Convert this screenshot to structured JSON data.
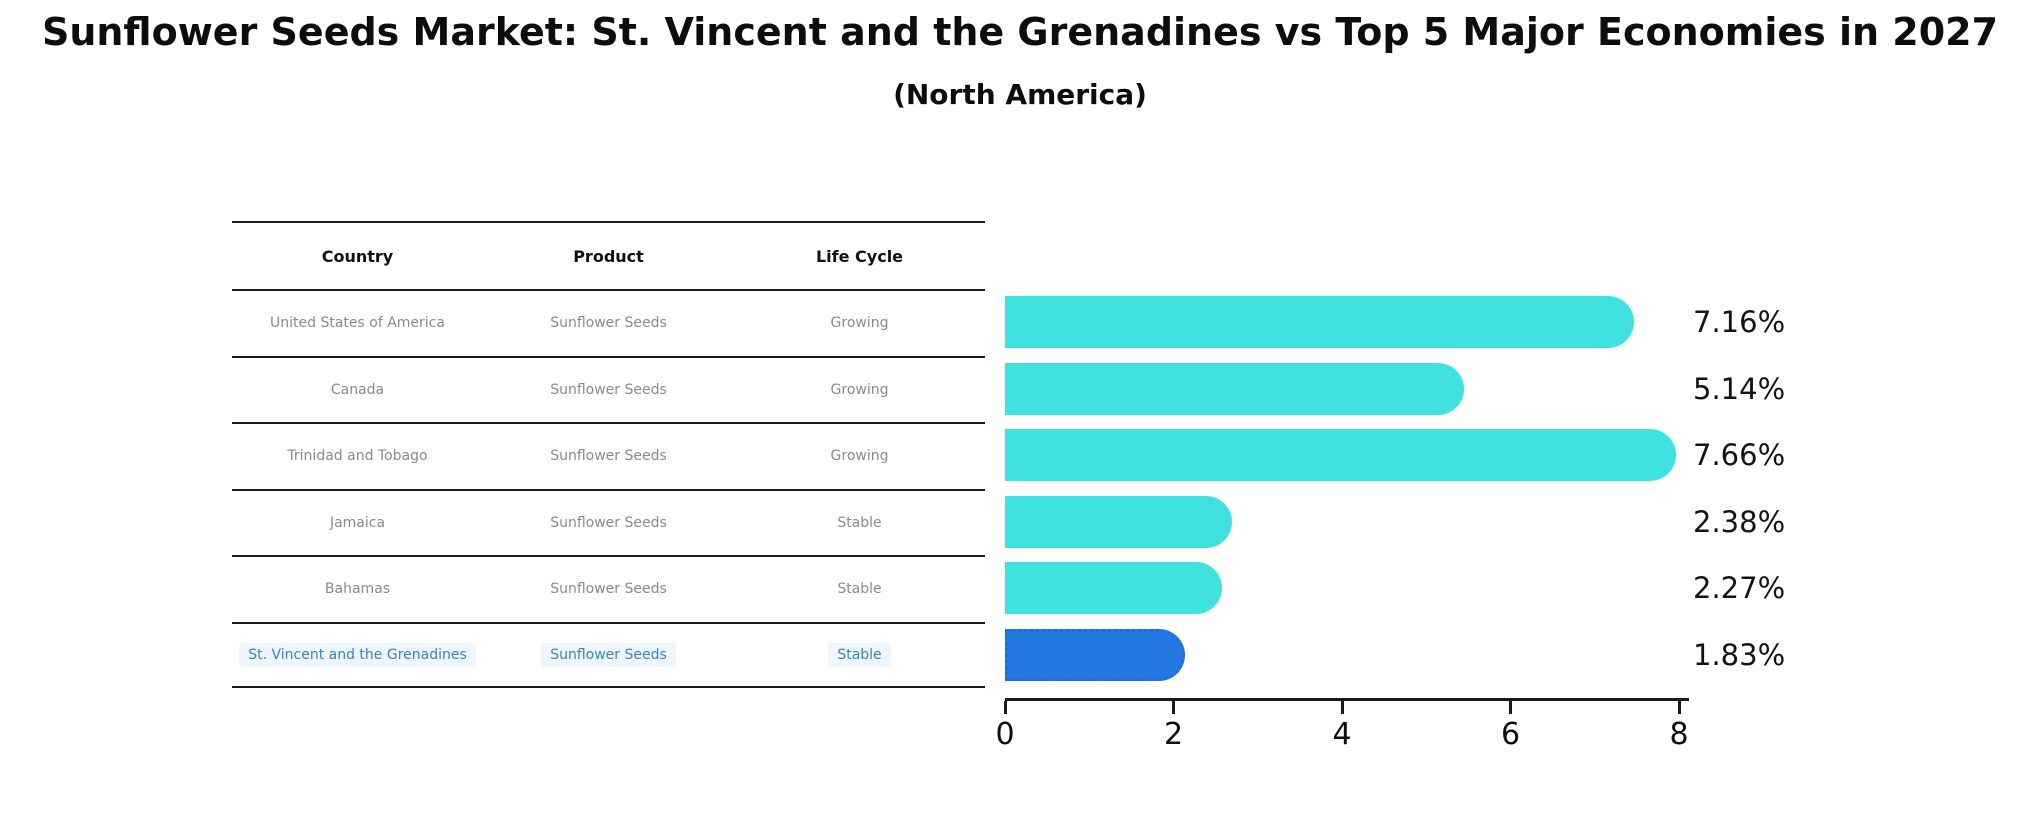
{
  "chart_data": {
    "type": "bar",
    "orientation": "horizontal",
    "title": "Sunflower Seeds Market: St. Vincent and the Grenadines vs Top 5 Major Economies in 2027",
    "subtitle": "(North America)",
    "categories": [
      "United States of America",
      "Canada",
      "Trinidad and Tobago",
      "Jamaica",
      "Bahamas",
      "St. Vincent and the Grenadines"
    ],
    "values": [
      7.16,
      5.14,
      7.66,
      2.38,
      2.27,
      1.83
    ],
    "value_labels": [
      "7.16%",
      "5.14%",
      "7.66%",
      "2.38%",
      "2.27%",
      "1.83%"
    ],
    "xlabel": "",
    "ylabel": "",
    "xlim": [
      0,
      8
    ],
    "xticks": [
      0,
      2,
      4,
      6,
      8
    ],
    "grid": false,
    "legend": false,
    "highlight_index": 5,
    "colors": {
      "bar": "#40E2E0",
      "highlight_bar": "#2277E0",
      "highlight_border": "#1E6FD9",
      "highlight_text": "#3585C5",
      "body_text": "#8a8a8a",
      "line": "#1a1a1a",
      "label_text": "#141414",
      "ink": "#0d0d0d"
    }
  },
  "table": {
    "headers": [
      "Country",
      "Product",
      "Life Cycle"
    ],
    "rows": [
      {
        "country": "United States of America",
        "product": "Sunflower Seeds",
        "life_cycle": "Growing"
      },
      {
        "country": "Canada",
        "product": "Sunflower Seeds",
        "life_cycle": "Growing"
      },
      {
        "country": "Trinidad and Tobago",
        "product": "Sunflower Seeds",
        "life_cycle": "Growing"
      },
      {
        "country": "Jamaica",
        "product": "Sunflower Seeds",
        "life_cycle": "Stable"
      },
      {
        "country": "Bahamas",
        "product": "Sunflower Seeds",
        "life_cycle": "Stable"
      },
      {
        "country": "St. Vincent and the Grenadines",
        "product": "Sunflower Seeds",
        "life_cycle": "Stable"
      }
    ],
    "highlight_row_index": 5
  }
}
